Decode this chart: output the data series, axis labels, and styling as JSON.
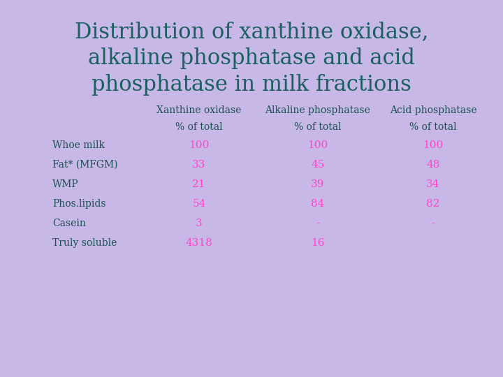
{
  "title": "Distribution of xanthine oxidase,\nalkaline phosphatase and acid\nphosphatase in milk fractions",
  "title_color": "#1a6060",
  "title_fontsize": 22,
  "background_color": "#c8b8e8",
  "header_color": "#1a5050",
  "data_color": "#ff44cc",
  "row_label_color": "#1a5050",
  "col_headers_line1": [
    "Xanthine oxidase",
    "Alkaline phosphatase",
    "Acid phosphatase"
  ],
  "col_headers_line2": [
    "% of total",
    "% of total",
    "% of total"
  ],
  "row_labels": [
    "Whoe milk",
    "Fat* (MFGM)",
    "WMP",
    "Phos.lipids",
    "Casein",
    "Truly soluble"
  ],
  "table_data": [
    [
      "100",
      "100",
      "100"
    ],
    [
      "33",
      "45",
      "48"
    ],
    [
      "21",
      "39",
      "34"
    ],
    [
      "54",
      "84",
      "82"
    ],
    [
      "3",
      "-",
      "-"
    ],
    [
      "4318",
      "16",
      ""
    ]
  ],
  "col_header_fontsize": 10,
  "row_label_fontsize": 10,
  "data_fontsize": 11
}
